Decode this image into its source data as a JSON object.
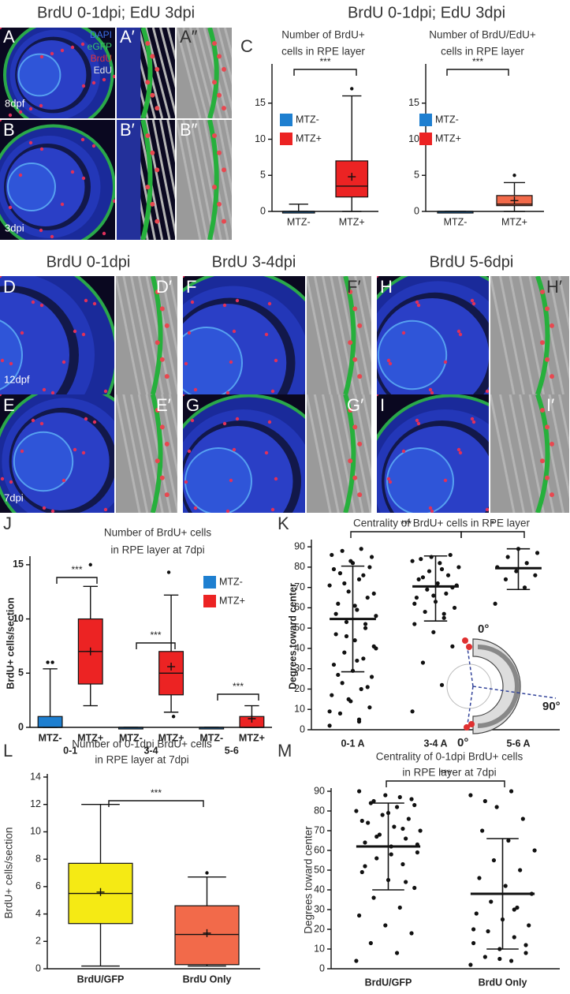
{
  "figure_titles": [
    "BrdU 0-1dpi;  EdU 3dpi",
    "BrdU 0-1dpi;  EdU 3dpi",
    "BrdU 0-1dpi",
    "BrdU 3-4dpi",
    "BrdU 5-6dpi"
  ],
  "panel_letters": [
    "A",
    "A′",
    "A″",
    "B",
    "B′",
    "B″",
    "C",
    "D",
    "D′",
    "E",
    "E′",
    "F",
    "F′",
    "G",
    "G′",
    "H",
    "H′",
    "I",
    "I′",
    "J",
    "K",
    "L",
    "M"
  ],
  "image_labels": [
    "8dpf",
    "3dpi",
    "12dpf",
    "7dpi"
  ],
  "stain_legend": [
    {
      "text": "DAPI",
      "color": "#3d6fe8"
    },
    {
      "text": "eGFP",
      "color": "#39c46a"
    },
    {
      "text": "BrdU",
      "color": "#e0303a"
    },
    {
      "text": "EdU",
      "color": "#e8e8e8"
    }
  ],
  "chart_data": [
    {
      "type": "box",
      "title": [
        "Number of BrdU+",
        "cells in RPE layer"
      ],
      "categories": [
        "MTZ-",
        "MTZ+"
      ],
      "legend": [
        {
          "name": "MTZ-",
          "color": "#1e7fd0"
        },
        {
          "name": "MTZ+",
          "color": "#ec2323"
        }
      ],
      "boxes": [
        {
          "color": "#1e7fd0",
          "min": 0,
          "q1": 0,
          "median": 0,
          "q3": 0,
          "max": 1,
          "outliers": []
        },
        {
          "color": "#ec2323",
          "min": 0,
          "q1": 2,
          "median": 3.5,
          "q3": 7,
          "max": 16,
          "mean": 4.8,
          "outliers": [
            17
          ]
        }
      ],
      "ylim": [
        0,
        20
      ],
      "yticks": [
        0,
        5,
        10,
        15
      ],
      "annotations": [
        "***"
      ]
    },
    {
      "type": "box",
      "title": [
        "Number of BrdU/EdU+",
        "cells in RPE layer"
      ],
      "categories": [
        "MTZ-",
        "MTZ+"
      ],
      "legend": [
        {
          "name": "MTZ-",
          "color": "#1e7fd0"
        },
        {
          "name": "MTZ+",
          "color": "#ec2323"
        }
      ],
      "boxes": [
        {
          "color": "#1e7fd0",
          "min": 0,
          "q1": 0,
          "median": 0,
          "q3": 0,
          "max": 0,
          "outliers": []
        },
        {
          "color": "#f26a4a",
          "min": 0,
          "q1": 0.8,
          "median": 1,
          "q3": 2.2,
          "max": 4,
          "mean": 1.5,
          "outliers": [
            5
          ]
        }
      ],
      "ylim": [
        0,
        20
      ],
      "yticks": [
        0,
        5,
        10,
        15
      ],
      "annotations": [
        "***"
      ]
    },
    {
      "type": "box",
      "title": [
        "Number of BrdU+ cells",
        "in RPE layer at 7dpi"
      ],
      "y_label": "BrdU+ cells/section",
      "categories": [
        "MTZ-",
        "MTZ+",
        "MTZ-",
        "MTZ+",
        "MTZ-",
        "MTZ+"
      ],
      "groups": [
        "0-1",
        "3-4",
        "5-6"
      ],
      "legend": [
        {
          "name": "MTZ-",
          "color": "#1e7fd0"
        },
        {
          "name": "MTZ+",
          "color": "#ec2323"
        }
      ],
      "boxes": [
        {
          "color": "#1e7fd0",
          "min": 0,
          "q1": 0,
          "median": 0,
          "q3": 1,
          "max": 5.4,
          "outliers": [
            6,
            6
          ]
        },
        {
          "color": "#ec2323",
          "min": 2,
          "q1": 4,
          "median": 7,
          "q3": 10,
          "max": 13,
          "mean": 7,
          "outliers": [
            15
          ]
        },
        {
          "color": "#1e7fd0",
          "min": 0,
          "q1": 0,
          "median": 0,
          "q3": 0,
          "max": 0,
          "outliers": []
        },
        {
          "color": "#ec2323",
          "min": 1.4,
          "q1": 3,
          "median": 5,
          "q3": 7,
          "max": 12.2,
          "mean": 5.6,
          "outliers": [
            14.3,
            1
          ]
        },
        {
          "color": "#1e7fd0",
          "min": 0,
          "q1": 0,
          "median": 0,
          "q3": 0,
          "max": 0,
          "outliers": []
        },
        {
          "color": "#ec2323",
          "min": 0,
          "q1": 0,
          "median": 0,
          "q3": 1,
          "max": 2,
          "mean": 0.8,
          "outliers": []
        }
      ],
      "ylim": [
        0,
        15.5
      ],
      "yticks": [
        0,
        5,
        10,
        15
      ],
      "annotations": [
        "***",
        "***",
        "***"
      ]
    },
    {
      "type": "scatter",
      "title": [
        "Centrality of BrdU+ cells in RPE layer"
      ],
      "y_label": "Degrees toward center",
      "groups": [
        "0-1 A",
        "3-4 A",
        "5-6 A"
      ],
      "points": [
        [
          2,
          5,
          8,
          11,
          14,
          17,
          20,
          23,
          26,
          29,
          32,
          35,
          38,
          41,
          44,
          47,
          50,
          53,
          56,
          59,
          62,
          65,
          68,
          71,
          74,
          77,
          80,
          83,
          86,
          89,
          88,
          85,
          82,
          79,
          76,
          72,
          67,
          61,
          57,
          52,
          46,
          40,
          34,
          27,
          21,
          15,
          9,
          4
        ],
        [
          9,
          22,
          33,
          41,
          48,
          52,
          55,
          58,
          60,
          63,
          65,
          67,
          69,
          71,
          72,
          74,
          76,
          78,
          80,
          82,
          84,
          86,
          85,
          83,
          79,
          75,
          70,
          66,
          62,
          57
        ],
        [
          62,
          70,
          74,
          76,
          78,
          80,
          82,
          85,
          87,
          89
        ]
      ],
      "means": [
        54.5,
        70.5,
        79.5
      ],
      "sd_low": [
        28.5,
        53.5,
        69
      ],
      "sd_high": [
        80.5,
        85.5,
        89
      ],
      "ylim": [
        0,
        92
      ],
      "yticks": [
        0,
        10,
        20,
        30,
        40,
        50,
        60,
        70,
        80,
        90
      ],
      "annotations": [
        "***",
        "*"
      ],
      "inset_labels": [
        "0°",
        "90°",
        "0°"
      ]
    },
    {
      "type": "box",
      "title": [
        "Number of 0-1dpi BrdU+ cells",
        "in RPE layer at 7dpi"
      ],
      "y_label": "BrdU+ cells/section",
      "categories": [
        "BrdU/GFP",
        "BrdU Only"
      ],
      "boxes": [
        {
          "color": "#f5ea14",
          "min": 0.2,
          "q1": 3.3,
          "median": 5.5,
          "q3": 7.7,
          "max": 12,
          "mean": 5.6,
          "outliers": []
        },
        {
          "color": "#f26a4a",
          "min": 0.2,
          "q1": 0.3,
          "median": 2.5,
          "q3": 4.6,
          "max": 6.7,
          "mean": 2.6,
          "outliers": [
            7
          ]
        }
      ],
      "ylim": [
        0,
        14
      ],
      "yticks": [
        0,
        2,
        4,
        6,
        8,
        10,
        12,
        14
      ],
      "annotations": [
        "***"
      ]
    },
    {
      "type": "scatter",
      "title": [
        "Centrality of 0-1dpi BrdU+ cells",
        "in RPE layer at 7dpi"
      ],
      "y_label": "Degrees toward center",
      "groups": [
        "BrdU/GFP",
        "BrdU Only"
      ],
      "points": [
        [
          4,
          8,
          13,
          18,
          22,
          27,
          31,
          36,
          41,
          45,
          49,
          53,
          56,
          59,
          62,
          64,
          66,
          68,
          70,
          72,
          74,
          76,
          78,
          80,
          82,
          84,
          86,
          88,
          90,
          87,
          85,
          83,
          79,
          75,
          71,
          67,
          63,
          58,
          52,
          44
        ],
        [
          2,
          4,
          6,
          8,
          10,
          13,
          16,
          19,
          22,
          25,
          28,
          31,
          34,
          38,
          42,
          46,
          50,
          55,
          60,
          65,
          70,
          76,
          82,
          88,
          90,
          85,
          12,
          5,
          20,
          30
        ]
      ],
      "means": [
        62,
        38
      ],
      "sd_low": [
        40,
        10
      ],
      "sd_high": [
        84,
        66
      ],
      "ylim": [
        0,
        90
      ],
      "yticks": [
        0,
        10,
        20,
        30,
        40,
        50,
        60,
        70,
        80,
        90
      ],
      "annotations": [
        "***"
      ]
    }
  ]
}
